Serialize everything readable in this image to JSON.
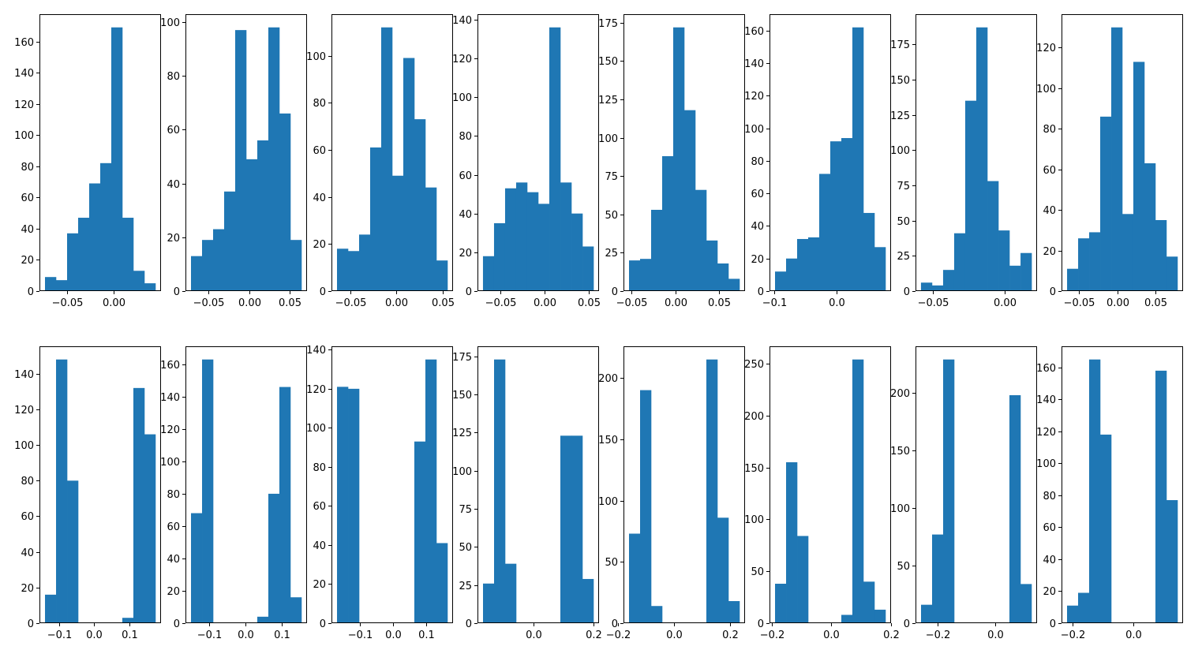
{
  "colors": {
    "bar": "#1f77b4",
    "axis": "#000000",
    "background": "#ffffff"
  },
  "chart_data": [
    {
      "type": "bar",
      "title": "",
      "xlabel": "",
      "ylabel": "",
      "edges": [
        -0.0735,
        -0.0617,
        -0.0499,
        -0.0381,
        -0.0263,
        -0.0145,
        -0.0027,
        0.0091,
        0.0209,
        0.0327,
        0.0445
      ],
      "values": [
        9,
        7,
        37,
        47,
        69,
        82,
        169,
        47,
        13,
        5
      ],
      "xlim": [
        -0.0794,
        0.0504
      ],
      "ylim": [
        0,
        177.45
      ],
      "xticks": [
        -0.05,
        0.0
      ],
      "xtick_labels": [
        "−0.05",
        "0.00"
      ],
      "yticks": [
        0,
        20,
        40,
        60,
        80,
        100,
        120,
        140,
        160
      ],
      "ytick_labels": [
        "0",
        "20",
        "40",
        "60",
        "80",
        "100",
        "120",
        "140",
        "160"
      ]
    },
    {
      "type": "bar",
      "title": "",
      "xlabel": "",
      "ylabel": "",
      "edges": [
        -0.0715,
        -0.0579,
        -0.0443,
        -0.0307,
        -0.0171,
        -0.0035,
        0.0101,
        0.0237,
        0.0373,
        0.0509,
        0.0645
      ],
      "values": [
        13,
        19,
        23,
        37,
        97,
        49,
        56,
        98,
        66,
        19
      ],
      "xlim": [
        -0.0783,
        0.0713
      ],
      "ylim": [
        0,
        102.9
      ],
      "xticks": [
        -0.05,
        0.0,
        0.05
      ],
      "xtick_labels": [
        "−0.05",
        "0.00",
        "0.05"
      ],
      "yticks": [
        0,
        20,
        40,
        60,
        80,
        100
      ],
      "ytick_labels": [
        "0",
        "20",
        "40",
        "60",
        "80",
        "100"
      ]
    },
    {
      "type": "bar",
      "title": "",
      "xlabel": "",
      "ylabel": "",
      "edges": [
        -0.0647,
        -0.0527,
        -0.0407,
        -0.0287,
        -0.0167,
        -0.0047,
        0.0073,
        0.0193,
        0.0313,
        0.0433,
        0.0553
      ],
      "values": [
        18,
        17,
        24,
        61,
        112,
        49,
        99,
        73,
        44,
        13
      ],
      "xlim": [
        -0.0707,
        0.0613
      ],
      "ylim": [
        0,
        117.6
      ],
      "xticks": [
        -0.05,
        0.0,
        0.05
      ],
      "xtick_labels": [
        "−0.05",
        "0.00",
        "0.05"
      ],
      "yticks": [
        0,
        20,
        40,
        60,
        80,
        100
      ],
      "ytick_labels": [
        "0",
        "20",
        "40",
        "60",
        "80",
        "100"
      ]
    },
    {
      "type": "bar",
      "title": "",
      "xlabel": "",
      "ylabel": "",
      "edges": [
        -0.0695,
        -0.057,
        -0.0445,
        -0.032,
        -0.0195,
        -0.007,
        0.0055,
        0.018,
        0.0305,
        0.043,
        0.0555
      ],
      "values": [
        18,
        35,
        53,
        56,
        51,
        45,
        136,
        56,
        40,
        23
      ],
      "xlim": [
        -0.0757,
        0.0617
      ],
      "ylim": [
        0,
        142.8
      ],
      "xticks": [
        -0.05,
        0.0,
        0.05
      ],
      "xtick_labels": [
        "−0.05",
        "0.00",
        "0.05"
      ],
      "yticks": [
        0,
        20,
        40,
        60,
        80,
        100,
        120,
        140
      ],
      "ytick_labels": [
        "0",
        "20",
        "40",
        "60",
        "80",
        "100",
        "120",
        "140"
      ]
    },
    {
      "type": "bar",
      "title": "",
      "xlabel": "",
      "ylabel": "",
      "edges": [
        -0.053,
        -0.0404,
        -0.0278,
        -0.0152,
        -0.0026,
        0.01,
        0.0226,
        0.0352,
        0.0478,
        0.0604,
        0.073
      ],
      "values": [
        20,
        21,
        53,
        88,
        172,
        118,
        66,
        33,
        18,
        8
      ],
      "xlim": [
        -0.0593,
        0.0793
      ],
      "ylim": [
        0,
        180.6
      ],
      "xticks": [
        -0.05,
        0.0,
        0.05
      ],
      "xtick_labels": [
        "−0.05",
        "0.00",
        "0.05"
      ],
      "yticks": [
        0,
        25,
        50,
        75,
        100,
        125,
        150,
        175
      ],
      "ytick_labels": [
        "0",
        "25",
        "50",
        "75",
        "100",
        "125",
        "150",
        "175"
      ]
    },
    {
      "type": "bar",
      "title": "",
      "xlabel": "",
      "ylabel": "",
      "edges": [
        -0.0985,
        -0.0809,
        -0.0633,
        -0.0457,
        -0.0281,
        -0.0105,
        0.0071,
        0.0247,
        0.0423,
        0.0599,
        0.0775
      ],
      "values": [
        12,
        20,
        32,
        33,
        72,
        92,
        94,
        162,
        48,
        27
      ],
      "xlim": [
        -0.1073,
        0.0863
      ],
      "ylim": [
        0,
        170.1
      ],
      "xticks": [
        -0.1,
        0.0
      ],
      "xtick_labels": [
        "−0.1",
        "0.0"
      ],
      "yticks": [
        0,
        20,
        40,
        60,
        80,
        100,
        120,
        140,
        160
      ],
      "ytick_labels": [
        "0",
        "20",
        "40",
        "60",
        "80",
        "100",
        "120",
        "140",
        "160"
      ]
    },
    {
      "type": "bar",
      "title": "",
      "xlabel": "",
      "ylabel": "",
      "edges": [
        -0.0582,
        -0.0505,
        -0.0428,
        -0.0351,
        -0.0274,
        -0.0197,
        -0.012,
        -0.0043,
        0.0034,
        0.0111,
        0.0188
      ],
      "values": [
        6,
        4,
        15,
        41,
        135,
        187,
        78,
        43,
        18,
        27
      ],
      "xlim": [
        -0.062,
        0.0226
      ],
      "ylim": [
        0,
        196.35
      ],
      "xticks": [
        -0.05,
        0.0
      ],
      "xtick_labels": [
        "−0.05",
        "0.00"
      ],
      "yticks": [
        0,
        25,
        50,
        75,
        100,
        125,
        150,
        175
      ],
      "ytick_labels": [
        "0",
        "25",
        "50",
        "75",
        "100",
        "125",
        "150",
        "175"
      ]
    },
    {
      "type": "bar",
      "title": "",
      "xlabel": "",
      "ylabel": "",
      "edges": [
        -0.066,
        -0.0515,
        -0.037,
        -0.0225,
        -0.008,
        0.0065,
        0.021,
        0.0355,
        0.05,
        0.0645,
        0.079
      ],
      "values": [
        11,
        26,
        29,
        86,
        130,
        38,
        113,
        63,
        35,
        17
      ],
      "xlim": [
        -0.0733,
        0.0863
      ],
      "ylim": [
        0,
        136.5
      ],
      "xticks": [
        -0.05,
        0.0,
        0.05
      ],
      "xtick_labels": [
        "−0.05",
        "0.00",
        "0.05"
      ],
      "yticks": [
        0,
        20,
        40,
        60,
        80,
        100,
        120
      ],
      "ytick_labels": [
        "0",
        "20",
        "40",
        "60",
        "80",
        "100",
        "120"
      ]
    },
    {
      "type": "bar",
      "title": "",
      "xlabel": "",
      "ylabel": "",
      "edges": [
        -0.14,
        -0.1085,
        -0.077,
        -0.0455,
        -0.014,
        0.0175,
        0.049,
        0.0805,
        0.112,
        0.1435,
        0.175
      ],
      "values": [
        16,
        148,
        80,
        0,
        0,
        0,
        0,
        3,
        132,
        106
      ],
      "xlim": [
        -0.1558,
        0.1908
      ],
      "ylim": [
        0,
        155.4
      ],
      "xticks": [
        -0.1,
        0.0,
        0.1
      ],
      "xtick_labels": [
        "−0.1",
        "0.0",
        "0.1"
      ],
      "yticks": [
        0,
        20,
        40,
        60,
        80,
        100,
        120,
        140
      ],
      "ytick_labels": [
        "0",
        "20",
        "40",
        "60",
        "80",
        "100",
        "120",
        "140"
      ]
    },
    {
      "type": "bar",
      "title": "",
      "xlabel": "",
      "ylabel": "",
      "edges": [
        -0.1495,
        -0.119,
        -0.0885,
        -0.058,
        -0.0275,
        0.003,
        0.0335,
        0.064,
        0.0945,
        0.125,
        0.1555
      ],
      "values": [
        68,
        163,
        0,
        0,
        0,
        0,
        4,
        80,
        146,
        16
      ],
      "xlim": [
        -0.1648,
        0.1708
      ],
      "ylim": [
        0,
        171.15
      ],
      "xticks": [
        -0.1,
        0.0,
        0.1
      ],
      "xtick_labels": [
        "−0.1",
        "0.0",
        "0.1"
      ],
      "yticks": [
        0,
        20,
        40,
        60,
        80,
        100,
        120,
        140,
        160
      ],
      "ytick_labels": [
        "0",
        "20",
        "40",
        "60",
        "80",
        "100",
        "120",
        "140",
        "160"
      ]
    },
    {
      "type": "bar",
      "title": "",
      "xlabel": "",
      "ylabel": "",
      "edges": [
        -0.1695,
        -0.1362,
        -0.1029,
        -0.0696,
        -0.0363,
        -0.003,
        0.0303,
        0.0636,
        0.0969,
        0.1302,
        0.1635
      ],
      "values": [
        121,
        120,
        0,
        0,
        0,
        0,
        0,
        93,
        135,
        41
      ],
      "xlim": [
        -0.1862,
        0.1802
      ],
      "ylim": [
        0,
        141.75
      ],
      "xticks": [
        -0.1,
        0.0,
        0.1
      ],
      "xtick_labels": [
        "−0.1",
        "0.0",
        "0.1"
      ],
      "yticks": [
        0,
        20,
        40,
        60,
        80,
        100,
        120,
        140
      ],
      "ytick_labels": [
        "0",
        "20",
        "40",
        "60",
        "80",
        "100",
        "120",
        "140"
      ]
    },
    {
      "type": "bar",
      "title": "",
      "xlabel": "",
      "ylabel": "",
      "edges": [
        -0.168,
        -0.1312,
        -0.0944,
        -0.0576,
        -0.0208,
        0.016,
        0.0528,
        0.0896,
        0.1264,
        0.1632,
        0.2
      ],
      "values": [
        26,
        173,
        39,
        0,
        0,
        0,
        0,
        123,
        123,
        29
      ],
      "xlim": [
        -0.1864,
        0.2184
      ],
      "ylim": [
        0,
        181.65
      ],
      "xticks": [
        0.0,
        0.2
      ],
      "xtick_labels": [
        "0.0",
        "0.2"
      ],
      "yticks": [
        0,
        25,
        50,
        75,
        100,
        125,
        150,
        175
      ],
      "ytick_labels": [
        "0",
        "25",
        "50",
        "75",
        "100",
        "125",
        "150",
        "175"
      ]
    },
    {
      "type": "bar",
      "title": "",
      "xlabel": "",
      "ylabel": "",
      "edges": [
        -0.16,
        -0.1206,
        -0.0812,
        -0.0418,
        -0.0024,
        0.037,
        0.0764,
        0.1158,
        0.1552,
        0.1946,
        0.234
      ],
      "values": [
        73,
        190,
        14,
        0,
        0,
        0,
        0,
        215,
        86,
        18
      ],
      "xlim": [
        -0.1797,
        0.2537
      ],
      "ylim": [
        0,
        225.75
      ],
      "xticks": [
        -0.2,
        0.0,
        0.2
      ],
      "xtick_labels": [
        "−0.2",
        "0.0",
        "0.2"
      ],
      "yticks": [
        0,
        50,
        100,
        150,
        200
      ],
      "ytick_labels": [
        "0",
        "50",
        "100",
        "150",
        "200"
      ]
    },
    {
      "type": "bar",
      "title": "",
      "xlabel": "",
      "ylabel": "",
      "edges": [
        -0.189,
        -0.1519,
        -0.1148,
        -0.0777,
        -0.0406,
        -0.0035,
        0.0336,
        0.0707,
        0.1078,
        0.1449,
        0.182
      ],
      "values": [
        38,
        155,
        84,
        0,
        0,
        0,
        8,
        254,
        40,
        13
      ],
      "xlim": [
        -0.2076,
        0.2006
      ],
      "ylim": [
        0,
        266.7
      ],
      "xticks": [
        -0.2,
        0.0,
        0.2
      ],
      "xtick_labels": [
        "−0.2",
        "0.0",
        "0.2"
      ],
      "yticks": [
        0,
        50,
        100,
        150,
        200,
        250
      ],
      "ytick_labels": [
        "0",
        "50",
        "100",
        "150",
        "200",
        "250"
      ]
    },
    {
      "type": "bar",
      "title": "",
      "xlabel": "",
      "ylabel": "",
      "edges": [
        -0.256,
        -0.218,
        -0.18,
        -0.142,
        -0.104,
        -0.066,
        -0.028,
        0.01,
        0.048,
        0.086,
        0.124
      ],
      "values": [
        16,
        77,
        229,
        0,
        0,
        0,
        0,
        0,
        198,
        34
      ],
      "xlim": [
        -0.275,
        0.143
      ],
      "ylim": [
        0,
        240.45
      ],
      "xticks": [
        -0.2,
        0.0
      ],
      "xtick_labels": [
        "−0.2",
        "0.0"
      ],
      "yticks": [
        0,
        50,
        100,
        150,
        200
      ],
      "ytick_labels": [
        "0",
        "50",
        "100",
        "150",
        "200"
      ]
    },
    {
      "type": "bar",
      "title": "",
      "xlabel": "",
      "ylabel": "",
      "edges": [
        -0.2185,
        -0.1821,
        -0.1457,
        -0.1093,
        -0.0729,
        -0.0365,
        -0.0001,
        0.0363,
        0.0727,
        0.1091,
        0.1455
      ],
      "values": [
        11,
        19,
        165,
        118,
        0,
        0,
        0,
        0,
        158,
        77
      ],
      "xlim": [
        -0.2367,
        0.1637
      ],
      "ylim": [
        0,
        173.25
      ],
      "xticks": [
        -0.2,
        0.0
      ],
      "xtick_labels": [
        "−0.2",
        "0.0"
      ],
      "yticks": [
        0,
        20,
        40,
        60,
        80,
        100,
        120,
        140,
        160
      ],
      "ytick_labels": [
        "0",
        "20",
        "40",
        "60",
        "80",
        "100",
        "120",
        "140",
        "160"
      ]
    }
  ]
}
